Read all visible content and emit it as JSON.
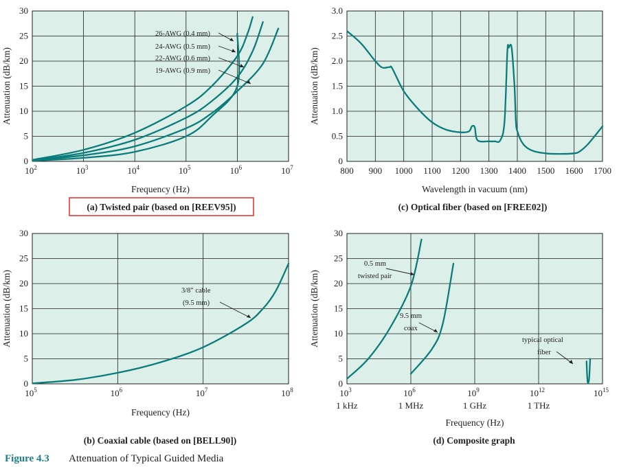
{
  "figure": {
    "number": "Figure 4.3",
    "title": "Attenuation of Typical Guided Media"
  },
  "colors": {
    "curve": "#0b7c7a",
    "plot_background": "#dcefe8",
    "highlight_box": "#e53935"
  },
  "chart_data": [
    {
      "id": "a",
      "type": "line",
      "title": "(a) Twisted pair (based on [REEV95])",
      "xlabel": "Frequency (Hz)",
      "ylabel": "Attenuation (dB/km)",
      "x_scale": "log",
      "xlim": [
        100,
        10000000
      ],
      "ylim": [
        0,
        30
      ],
      "grid": true,
      "x_ticks": [
        {
          "base": "10",
          "exp": "2"
        },
        {
          "base": "10",
          "exp": "3"
        },
        {
          "base": "10",
          "exp": "4"
        },
        {
          "base": "10",
          "exp": "5"
        },
        {
          "base": "10",
          "exp": "6"
        },
        {
          "base": "10",
          "exp": "7"
        }
      ],
      "y_ticks": [
        "0",
        "5",
        "10",
        "15",
        "20",
        "25",
        "30"
      ],
      "series": [
        {
          "name": "26-AWG (0.4 mm)",
          "x": [
            100,
            1000,
            10000,
            100000,
            316228,
            1000000,
            1584893,
            1995262
          ],
          "y": [
            0.3,
            2.3,
            5.7,
            11.0,
            15.0,
            21.0,
            25.5,
            28.8
          ]
        },
        {
          "name": "24-AWG (0.5 mm)",
          "x": [
            100,
            1000,
            10000,
            100000,
            316228,
            1000000,
            1995262,
            3162278
          ],
          "y": [
            0.2,
            1.7,
            4.3,
            8.7,
            12.0,
            16.8,
            22.0,
            27.8
          ]
        },
        {
          "name": "22-AWG (0.6 mm)",
          "x": [
            100,
            1000,
            10000,
            100000,
            316228,
            1000000,
            3162278,
            6309573
          ],
          "y": [
            0.2,
            1.2,
            3.0,
            6.6,
            9.6,
            14.0,
            19.5,
            26.5
          ]
        },
        {
          "name": "19-AWG (0.9 mm)",
          "x": [
            100,
            1000,
            10000,
            100000,
            316228,
            1000000,
            1000000
          ],
          "y": [
            0.1,
            0.7,
            1.9,
            5.0,
            9.0,
            15.0,
            25.5
          ]
        }
      ],
      "annotations": [
        "26-AWG (0.4 mm)",
        "24-AWG (0.5 mm)",
        "22-AWG (0.6 mm)",
        "19-AWG (0.9 mm)"
      ]
    },
    {
      "id": "c",
      "type": "line",
      "title": "(c) Optical fiber (based on [FREE02])",
      "xlabel": "Wavelength in vacuum (nm)",
      "ylabel": "Attenuation (dB/km)",
      "x_scale": "linear",
      "xlim": [
        800,
        1700
      ],
      "ylim": [
        0,
        3.0
      ],
      "grid": true,
      "x_ticks": [
        "800",
        "900",
        "1000",
        "1100",
        "1200",
        "1300",
        "1400",
        "1500",
        "1600",
        "1700"
      ],
      "y_ticks": [
        "0",
        "0.5",
        "1.0",
        "1.5",
        "2.0",
        "2.5",
        "3.0"
      ],
      "series": [
        {
          "x": [
            800,
            850,
            900,
            925,
            950,
            960,
            1000,
            1050,
            1100,
            1150,
            1200,
            1230,
            1240,
            1250,
            1260,
            1300,
            1320,
            1340,
            1355,
            1365,
            1370,
            1380,
            1390,
            1395,
            1400,
            1420,
            1450,
            1500,
            1550,
            1600,
            1620,
            1650,
            1700
          ],
          "y": [
            2.6,
            2.35,
            2.0,
            1.87,
            1.88,
            1.85,
            1.4,
            1.05,
            0.78,
            0.63,
            0.58,
            0.6,
            0.7,
            0.68,
            0.42,
            0.4,
            0.4,
            0.42,
            0.8,
            2.2,
            2.27,
            2.27,
            1.5,
            0.8,
            0.6,
            0.35,
            0.22,
            0.16,
            0.15,
            0.16,
            0.2,
            0.35,
            0.7
          ]
        }
      ]
    },
    {
      "id": "b",
      "type": "line",
      "title": "(b) Coaxial cable (based on [BELL90])",
      "xlabel": "Frequency (Hz)",
      "ylabel": "Attenuation (dB/km)",
      "x_scale": "log",
      "xlim": [
        100000,
        100000000
      ],
      "ylim": [
        0,
        30
      ],
      "grid": true,
      "x_ticks": [
        {
          "base": "10",
          "exp": "5"
        },
        {
          "base": "10",
          "exp": "6"
        },
        {
          "base": "10",
          "exp": "7"
        },
        {
          "base": "10",
          "exp": "8"
        }
      ],
      "y_ticks": [
        "0",
        "5",
        "10",
        "15",
        "20",
        "25",
        "30"
      ],
      "series": [
        {
          "name": "3/8\" cable (9.5 mm)",
          "x": [
            100000,
            316228,
            1000000,
            3162278,
            10000000,
            31622777,
            50118723,
            70794578,
            100000000
          ],
          "y": [
            0.1,
            0.8,
            2.2,
            4.3,
            7.3,
            12.0,
            15.0,
            18.5,
            24.0
          ]
        }
      ],
      "annotations": [
        "3/8\" cable",
        "(9.5 mm)"
      ]
    },
    {
      "id": "d",
      "type": "line",
      "title": "(d) Composite graph",
      "xlabel": "Frequency (Hz)",
      "ylabel": "Attenuation (dB/km)",
      "x_scale": "log",
      "xlim": [
        1000,
        1000000000000000
      ],
      "ylim": [
        0,
        30
      ],
      "grid": true,
      "x_ticks": [
        {
          "base": "10",
          "exp": "3",
          "sub": "1 kHz"
        },
        {
          "base": "10",
          "exp": "6",
          "sub": "1 MHz"
        },
        {
          "base": "10",
          "exp": "9",
          "sub": "1 GHz"
        },
        {
          "base": "10",
          "exp": "12",
          "sub": "1 THz"
        },
        {
          "base": "10",
          "exp": "15",
          "sub": ""
        }
      ],
      "y_ticks": [
        "0",
        "5",
        "10",
        "15",
        "20",
        "25",
        "30"
      ],
      "series": [
        {
          "name": "0.5 mm twisted pair",
          "x": [
            1000,
            10000,
            100000,
            1000000,
            3162278
          ],
          "y": [
            1.0,
            5.0,
            11.0,
            19.5,
            28.8
          ]
        },
        {
          "name": "9.5 mm coax",
          "x": [
            1000000,
            10000000,
            31622777,
            100000000
          ],
          "y": [
            2.0,
            7.0,
            12.0,
            24.0
          ]
        },
        {
          "name": "typical optical fiber",
          "x": [
            177827941003892,
            190546071796325,
            204173794466953,
            223872113856834,
            239883291901949,
            263026799189538
          ],
          "y": [
            4.5,
            1.5,
            0.2,
            0.4,
            1.5,
            5.0
          ]
        }
      ],
      "annotations": [
        "0.5 mm",
        "twisted pair",
        "9.5 mm",
        "coax",
        "typical optical",
        "fiber"
      ]
    }
  ]
}
